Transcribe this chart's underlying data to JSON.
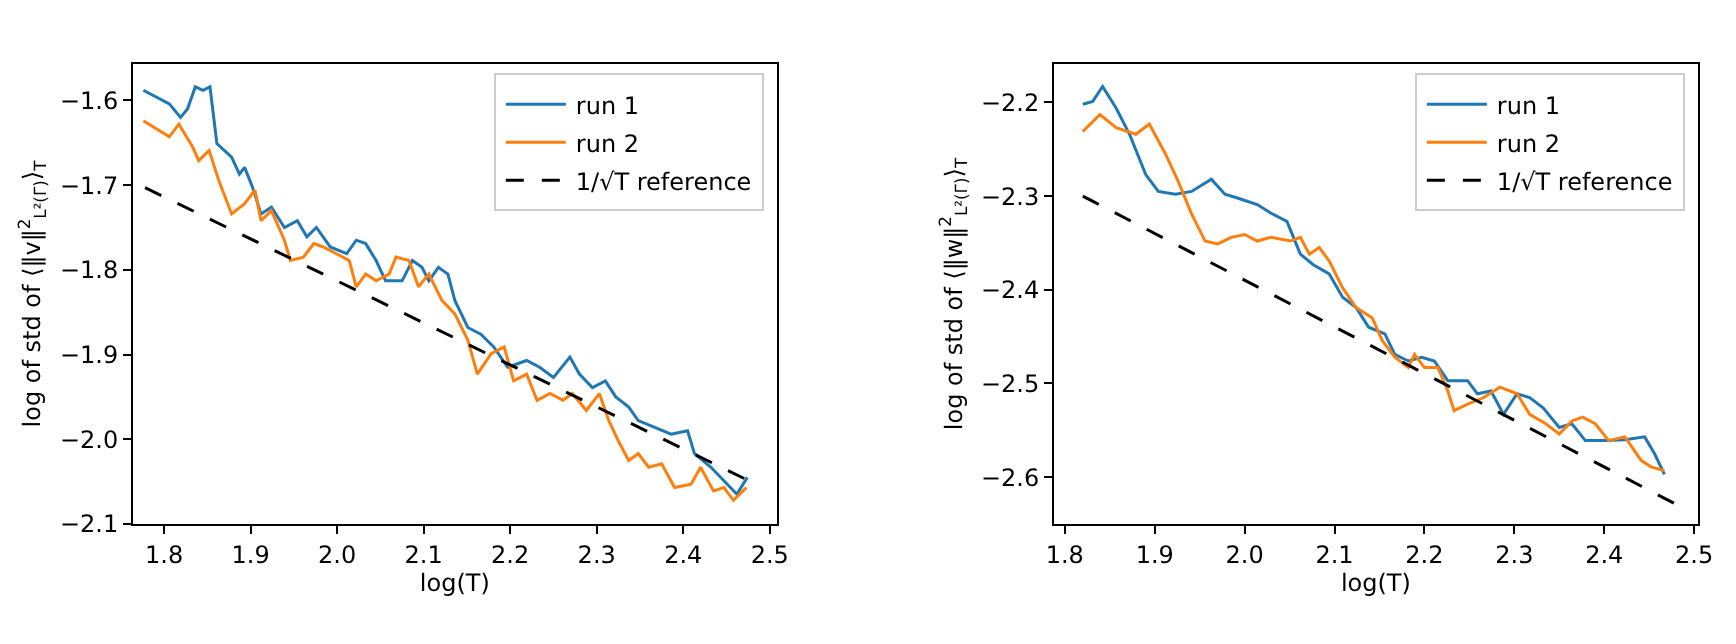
{
  "chart_data": [
    {
      "type": "line",
      "xlabel": "log($_{}$T)",
      "ylabel": "log of std of ⟨‖v‖$^{2}$$_{L²(Γ)}$⟩$_{T}$",
      "xlim": [
        1.764,
        2.508
      ],
      "ylim": [
        -2.1,
        -1.557
      ],
      "xticks": [
        1.8,
        1.9,
        {
          "value": 2,
          "label": "2.0"
        },
        2.1,
        2.2,
        2.3,
        2.4,
        2.5
      ],
      "yticks": [
        -2.1,
        {
          "value": -2,
          "label": "−2.0"
        },
        -1.9,
        -1.8,
        -1.7,
        -1.6
      ],
      "legend": "top right",
      "series": [
        {
          "name": "run 1",
          "color": "#1f77b4",
          "line_style": "solid",
          "x": [
            1.776,
            1.806,
            1.819,
            1.827,
            1.836,
            1.845,
            1.853,
            1.861,
            1.878,
            1.887,
            1.893,
            1.902,
            1.912,
            1.924,
            1.939,
            1.954,
            1.965,
            1.976,
            1.992,
            2.011,
            2.022,
            2.033,
            2.045,
            2.056,
            2.075,
            2.087,
            2.098,
            2.106,
            2.117,
            2.128,
            2.136,
            2.151,
            2.166,
            2.181,
            2.197,
            2.219,
            2.234,
            2.25,
            2.269,
            2.28,
            2.295,
            2.31,
            2.322,
            2.337,
            2.348,
            2.367,
            2.386,
            2.405,
            2.413,
            2.432,
            2.447,
            2.462,
            2.474
          ],
          "values": [
            -1.588,
            -1.604,
            -1.62,
            -1.61,
            -1.584,
            -1.588,
            -1.584,
            -1.651,
            -1.667,
            -1.687,
            -1.679,
            -1.702,
            -1.734,
            -1.726,
            -1.75,
            -1.742,
            -1.761,
            -1.75,
            -1.773,
            -1.781,
            -1.765,
            -1.769,
            -1.789,
            -1.813,
            -1.813,
            -1.789,
            -1.797,
            -1.813,
            -1.797,
            -1.805,
            -1.836,
            -1.868,
            -1.876,
            -1.891,
            -1.915,
            -1.907,
            -1.915,
            -1.927,
            -1.903,
            -1.923,
            -1.939,
            -1.931,
            -1.95,
            -1.962,
            -1.978,
            -1.986,
            -1.994,
            -1.99,
            -2.017,
            -2.033,
            -2.049,
            -2.065,
            -2.045
          ]
        },
        {
          "name": "run 2",
          "color": "#ff7f0e",
          "line_style": "solid",
          "x": [
            1.776,
            1.806,
            1.817,
            1.833,
            1.84,
            1.852,
            1.863,
            1.878,
            1.893,
            1.905,
            1.912,
            1.924,
            1.939,
            1.946,
            1.961,
            1.973,
            1.984,
            1.999,
            2.014,
            2.022,
            2.033,
            2.045,
            2.06,
            2.068,
            2.083,
            2.094,
            2.106,
            2.121,
            2.136,
            2.151,
            2.162,
            2.178,
            2.193,
            2.204,
            2.219,
            2.231,
            2.246,
            2.261,
            2.272,
            2.288,
            2.303,
            2.314,
            2.325,
            2.337,
            2.348,
            2.36,
            2.375,
            2.39,
            2.409,
            2.42,
            2.435,
            2.447,
            2.458,
            2.473
          ],
          "values": [
            -1.624,
            -1.643,
            -1.628,
            -1.655,
            -1.671,
            -1.659,
            -1.694,
            -1.734,
            -1.722,
            -1.706,
            -1.742,
            -1.73,
            -1.765,
            -1.789,
            -1.785,
            -1.769,
            -1.773,
            -1.781,
            -1.789,
            -1.82,
            -1.805,
            -1.813,
            -1.805,
            -1.785,
            -1.789,
            -1.82,
            -1.805,
            -1.836,
            -1.852,
            -1.883,
            -1.923,
            -1.899,
            -1.891,
            -1.931,
            -1.923,
            -1.954,
            -1.946,
            -1.954,
            -1.946,
            -1.966,
            -1.946,
            -1.978,
            -2.002,
            -2.025,
            -2.017,
            -2.033,
            -2.029,
            -2.057,
            -2.053,
            -2.033,
            -2.061,
            -2.057,
            -2.072,
            -2.057
          ]
        },
        {
          "name": "1/√T reference",
          "color": "#000000",
          "line_style": "dashed",
          "x": [
            1.778,
            2.478
          ],
          "values": [
            -1.703,
            -2.05
          ]
        }
      ]
    },
    {
      "type": "line",
      "xlabel": "log($_{}$T)",
      "ylabel": "log of std of ⟨‖w‖$^{2}$$_{L²(Γ)}$⟩$_{T}$",
      "xlim": [
        1.788,
        2.504
      ],
      "ylim": [
        -2.65,
        -2.159
      ],
      "xticks": [
        1.8,
        1.9,
        {
          "value": 2,
          "label": "2.0"
        },
        2.1,
        2.2,
        2.3,
        2.4,
        2.5
      ],
      "yticks": [
        -2.6,
        -2.5,
        -2.4,
        -2.3,
        -2.2
      ],
      "legend": "top right",
      "series": [
        {
          "name": "run 1",
          "color": "#1f77b4",
          "line_style": "solid",
          "x": [
            1.82,
            1.831,
            1.842,
            1.857,
            1.872,
            1.89,
            1.904,
            1.923,
            1.941,
            1.963,
            1.978,
            1.992,
            2.014,
            2.029,
            2.047,
            2.062,
            2.076,
            2.094,
            2.109,
            2.124,
            2.138,
            2.156,
            2.167,
            2.182,
            2.197,
            2.211,
            2.226,
            2.248,
            2.259,
            2.274,
            2.288,
            2.303,
            2.317,
            2.332,
            2.35,
            2.364,
            2.379,
            2.401,
            2.423,
            2.445,
            2.456,
            2.467
          ],
          "values": [
            -2.202,
            -2.199,
            -2.183,
            -2.206,
            -2.234,
            -2.277,
            -2.295,
            -2.298,
            -2.295,
            -2.282,
            -2.298,
            -2.302,
            -2.309,
            -2.318,
            -2.327,
            -2.362,
            -2.373,
            -2.383,
            -2.408,
            -2.419,
            -2.44,
            -2.447,
            -2.469,
            -2.476,
            -2.472,
            -2.476,
            -2.497,
            -2.497,
            -2.511,
            -2.508,
            -2.533,
            -2.511,
            -2.515,
            -2.526,
            -2.547,
            -2.543,
            -2.561,
            -2.561,
            -2.56,
            -2.557,
            -2.575,
            -2.597
          ]
        },
        {
          "name": "run 2",
          "color": "#ff7f0e",
          "line_style": "solid",
          "x": [
            1.82,
            1.839,
            1.857,
            1.879,
            1.894,
            1.912,
            1.926,
            1.941,
            1.956,
            1.97,
            1.985,
            2.0,
            2.014,
            2.029,
            2.051,
            2.062,
            2.072,
            2.083,
            2.094,
            2.109,
            2.124,
            2.142,
            2.153,
            2.167,
            2.182,
            2.189,
            2.2,
            2.215,
            2.226,
            2.233,
            2.248,
            2.266,
            2.284,
            2.303,
            2.317,
            2.335,
            2.35,
            2.364,
            2.376,
            2.39,
            2.405,
            2.423,
            2.441,
            2.452,
            2.467
          ],
          "values": [
            -2.231,
            -2.213,
            -2.227,
            -2.234,
            -2.223,
            -2.255,
            -2.284,
            -2.319,
            -2.348,
            -2.351,
            -2.344,
            -2.341,
            -2.348,
            -2.344,
            -2.348,
            -2.344,
            -2.362,
            -2.355,
            -2.369,
            -2.398,
            -2.419,
            -2.43,
            -2.454,
            -2.472,
            -2.483,
            -2.469,
            -2.483,
            -2.483,
            -2.508,
            -2.529,
            -2.522,
            -2.515,
            -2.504,
            -2.511,
            -2.533,
            -2.543,
            -2.554,
            -2.54,
            -2.536,
            -2.543,
            -2.561,
            -2.557,
            -2.582,
            -2.589,
            -2.593
          ]
        },
        {
          "name": "1/√T reference",
          "color": "#000000",
          "line_style": "dashed",
          "x": [
            1.82,
            2.478
          ],
          "values": [
            -2.3,
            -2.628
          ]
        }
      ]
    }
  ]
}
